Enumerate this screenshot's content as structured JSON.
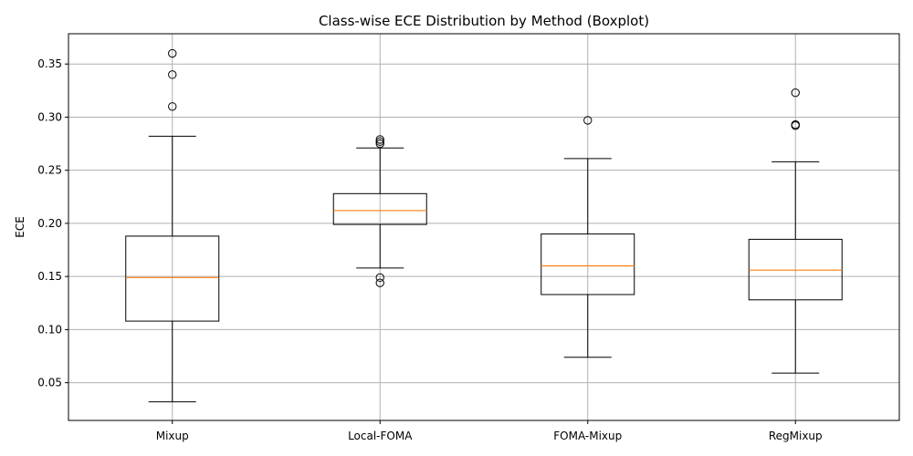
{
  "chart_data": {
    "type": "boxplot",
    "title": "Class-wise ECE Distribution by Method (Boxplot)",
    "xlabel": "",
    "ylabel": "ECE",
    "ylim": [
      0.0145,
      0.3785
    ],
    "yticks": [
      "0.05",
      "0.10",
      "0.15",
      "0.20",
      "0.25",
      "0.30",
      "0.35"
    ],
    "grid": true,
    "box_color": "#000000",
    "median_color": "#ff7f0e",
    "grid_color": "#b0b0b0",
    "categories": [
      "Mixup",
      "Local-FOMA",
      "FOMA-Mixup",
      "RegMixup"
    ],
    "boxes": [
      {
        "category": "Mixup",
        "whisker_low": 0.032,
        "q1": 0.108,
        "median": 0.149,
        "q3": 0.188,
        "whisker_high": 0.282,
        "outliers": [
          0.31,
          0.34,
          0.36
        ]
      },
      {
        "category": "Local-FOMA",
        "whisker_low": 0.158,
        "q1": 0.199,
        "median": 0.212,
        "q3": 0.228,
        "whisker_high": 0.271,
        "outliers": [
          0.144,
          0.149,
          0.275,
          0.277,
          0.279
        ]
      },
      {
        "category": "FOMA-Mixup",
        "whisker_low": 0.074,
        "q1": 0.133,
        "median": 0.16,
        "q3": 0.19,
        "whisker_high": 0.261,
        "outliers": [
          0.297
        ]
      },
      {
        "category": "RegMixup",
        "whisker_low": 0.059,
        "q1": 0.128,
        "median": 0.156,
        "q3": 0.185,
        "whisker_high": 0.258,
        "outliers": [
          0.292,
          0.293,
          0.323
        ]
      }
    ]
  }
}
